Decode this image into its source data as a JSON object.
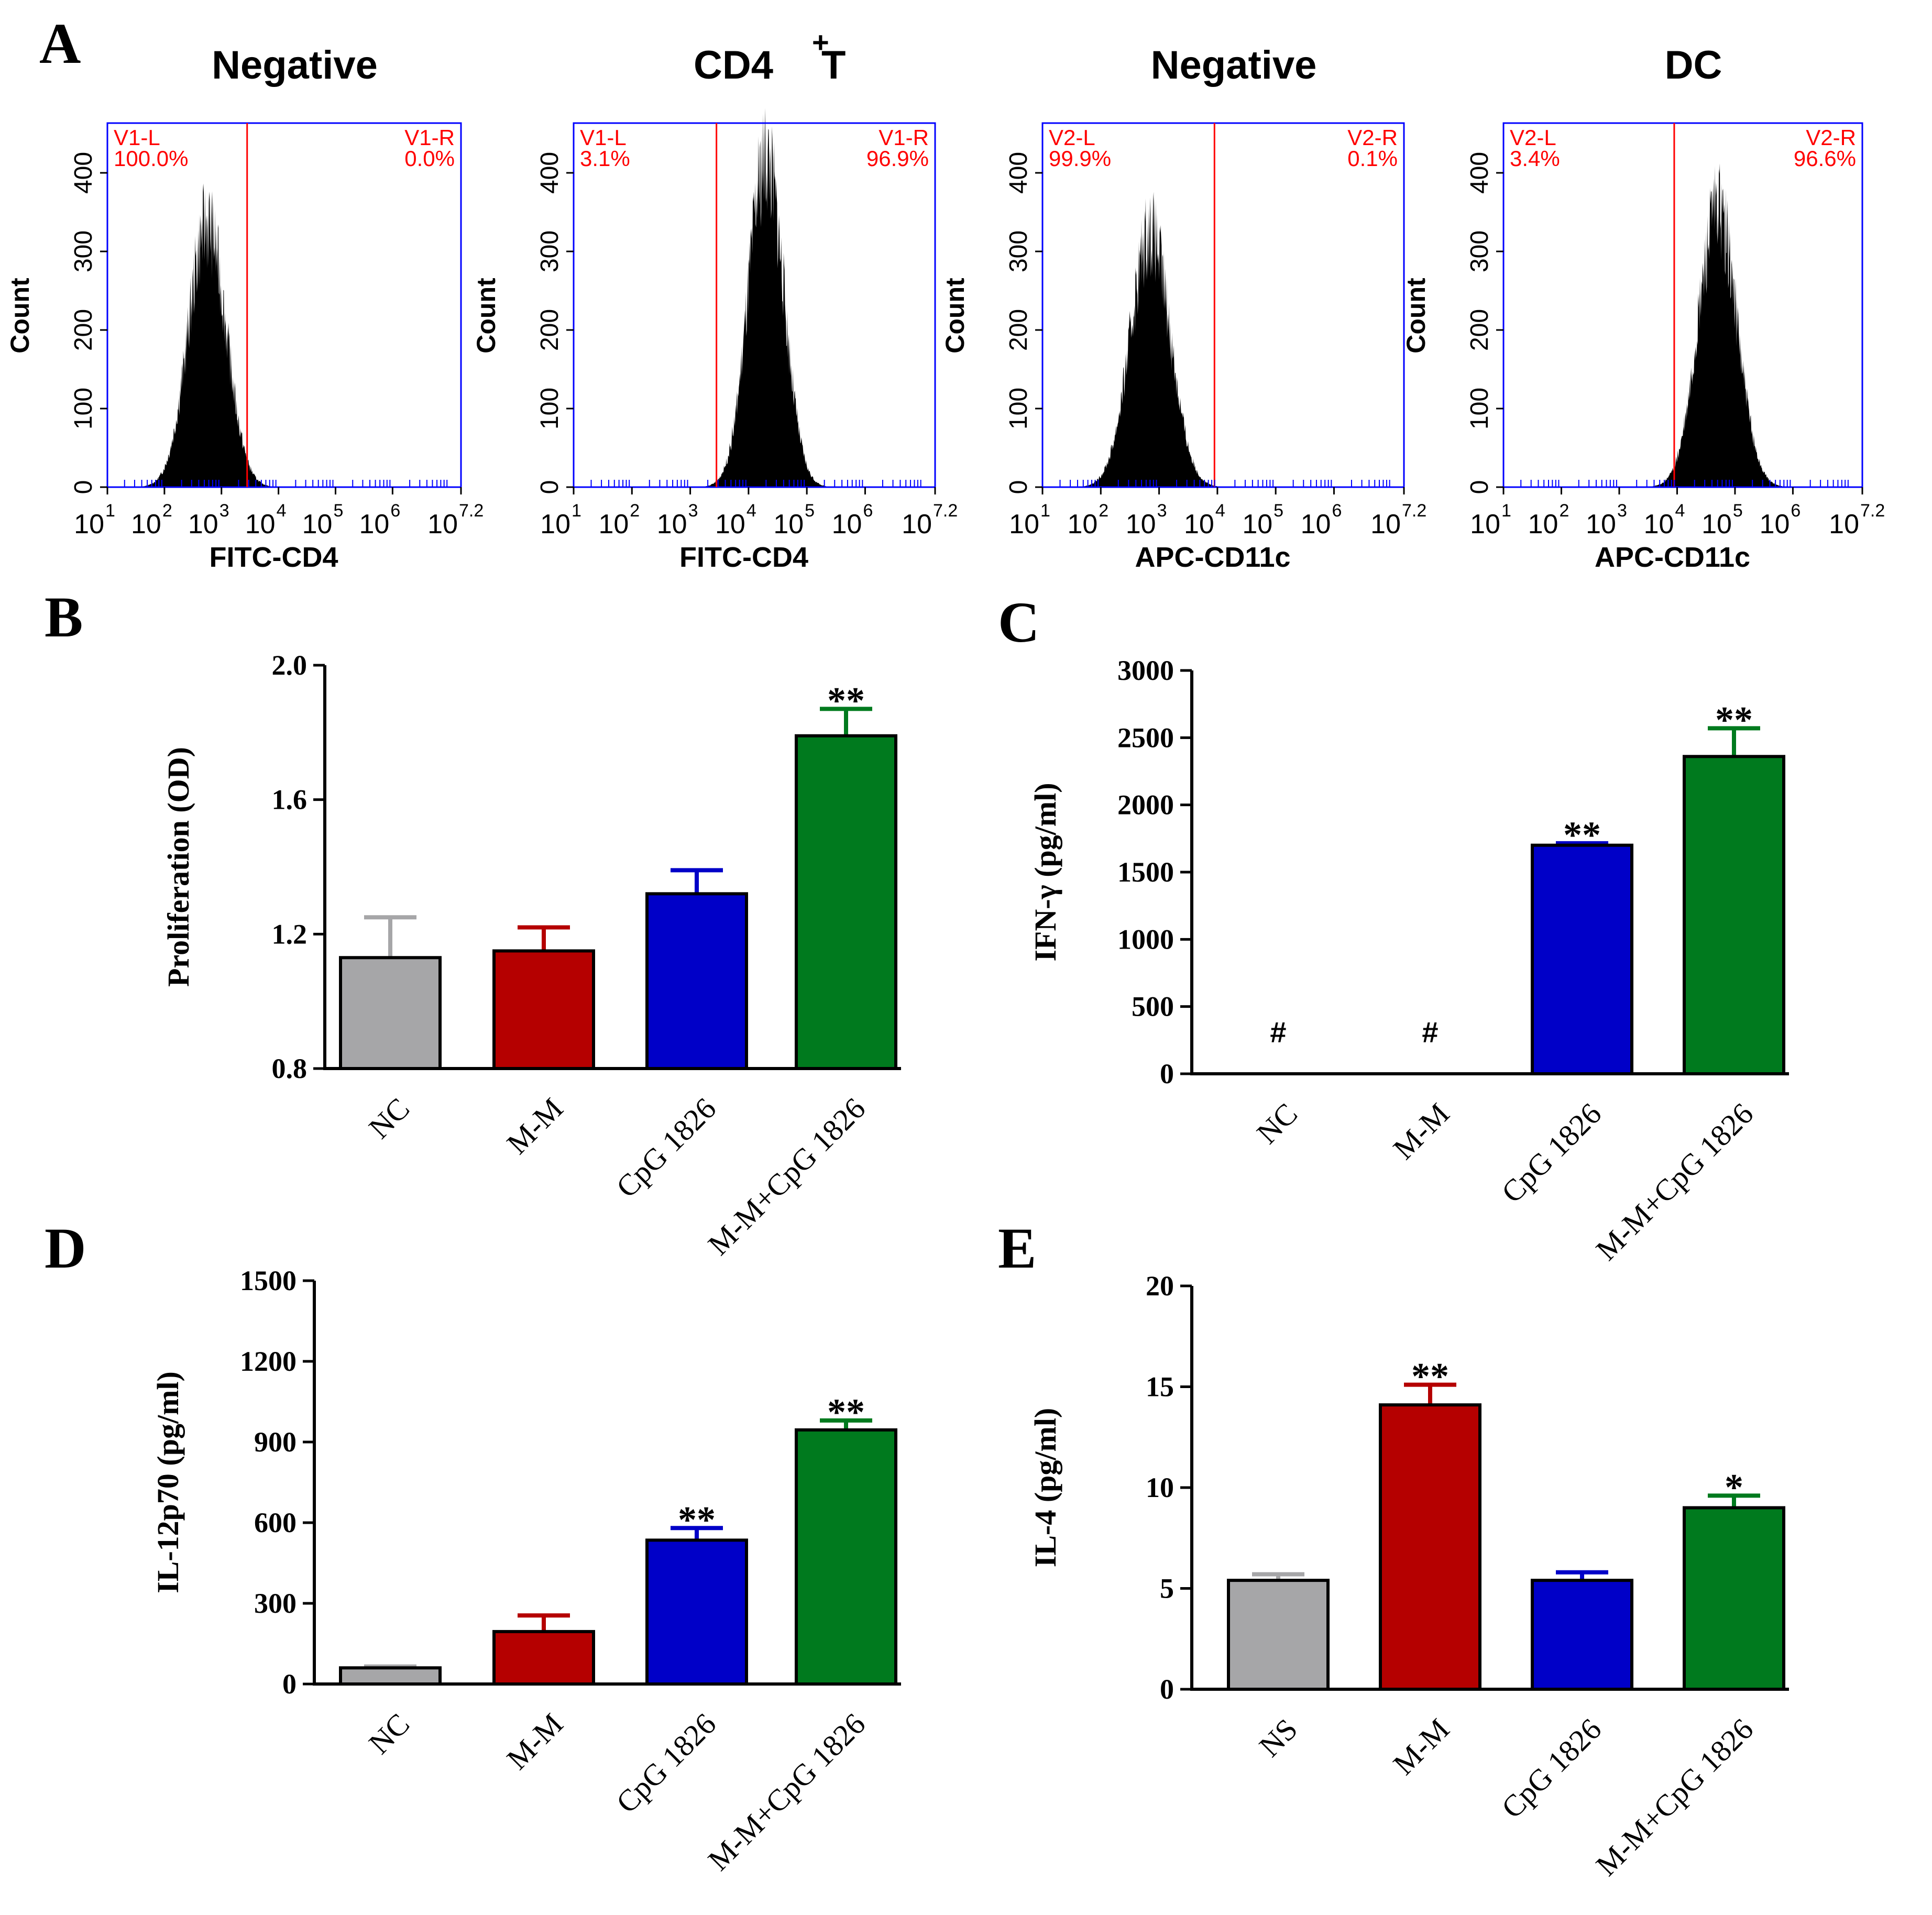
{
  "panel_labels": [
    "A",
    "B",
    "C",
    "D",
    "E"
  ],
  "colors": {
    "gray": "#A6A6A8",
    "red": "#B50000",
    "blue": "#0000C8",
    "green": "#007A1E",
    "gate_line": "#FF0000",
    "gate_text": "#FF0000",
    "frame": "#0000FF",
    "histogram": "#000000"
  },
  "chart_data": [
    {
      "panel": "A",
      "type": "histogram",
      "title": "Negative",
      "xlabel": "FITC-CD4",
      "ylabel": "Count",
      "xscale": "log10",
      "xlim": [
        1,
        7.2
      ],
      "ylim": [
        0,
        450
      ],
      "yticks": [
        "0",
        "100",
        "200",
        "300",
        "400"
      ],
      "xticks": [
        "10",
        "10",
        "10",
        "10",
        "10",
        "10",
        "10"
      ],
      "xtick_exps": [
        "1",
        "2",
        "3",
        "4",
        "5",
        "6",
        "7.2"
      ],
      "gate_at_log": 3.45,
      "gates": [
        {
          "name": "V1-L",
          "percent": "100.0%"
        },
        {
          "name": "V1-R",
          "percent": "0.0%"
        }
      ],
      "peak_log": 2.75,
      "peak_count": 335,
      "sigma_log": 0.33
    },
    {
      "panel": "A",
      "type": "histogram",
      "title": "CD4",
      "title_sup": "+",
      "title_suffix": " T",
      "xlabel": "FITC-CD4",
      "ylabel": "Count",
      "xscale": "log10",
      "xlim": [
        1,
        7.2
      ],
      "ylim": [
        0,
        450
      ],
      "yticks": [
        "0",
        "100",
        "200",
        "300",
        "400"
      ],
      "xticks": [
        "10",
        "10",
        "10",
        "10",
        "10",
        "10",
        "10"
      ],
      "xtick_exps": [
        "1",
        "2",
        "3",
        "4",
        "5",
        "6",
        "7.2"
      ],
      "gate_at_log": 3.45,
      "gates": [
        {
          "name": "V1-L",
          "percent": "3.1%"
        },
        {
          "name": "V1-R",
          "percent": "96.9%"
        }
      ],
      "peak_log": 4.3,
      "peak_count": 420,
      "sigma_log": 0.3
    },
    {
      "panel": "A",
      "type": "histogram",
      "title": "Negative",
      "xlabel": "APC-CD11c",
      "ylabel": "Count",
      "xscale": "log10",
      "xlim": [
        1,
        7.2
      ],
      "ylim": [
        0,
        450
      ],
      "yticks": [
        "0",
        "100",
        "200",
        "300",
        "400"
      ],
      "xticks": [
        "10",
        "10",
        "10",
        "10",
        "10",
        "10",
        "10"
      ],
      "xtick_exps": [
        "1",
        "2",
        "3",
        "4",
        "5",
        "6",
        "7.2"
      ],
      "gate_at_log": 3.95,
      "gates": [
        {
          "name": "V2-L",
          "percent": "99.9%"
        },
        {
          "name": "V2-R",
          "percent": "0.1%"
        }
      ],
      "peak_log": 2.85,
      "peak_count": 325,
      "sigma_log": 0.34
    },
    {
      "panel": "A",
      "type": "histogram",
      "title": "DC",
      "xlabel": "APC-CD11c",
      "ylabel": "Count",
      "xscale": "log10",
      "xlim": [
        1,
        7.2
      ],
      "ylim": [
        0,
        450
      ],
      "yticks": [
        "0",
        "100",
        "200",
        "300",
        "400"
      ],
      "xticks": [
        "10",
        "10",
        "10",
        "10",
        "10",
        "10",
        "10"
      ],
      "xtick_exps": [
        "1",
        "2",
        "3",
        "4",
        "5",
        "6",
        "7.2"
      ],
      "gate_at_log": 3.95,
      "gates": [
        {
          "name": "V2-L",
          "percent": "3.4%"
        },
        {
          "name": "V2-R",
          "percent": "96.6%"
        }
      ],
      "peak_log": 4.7,
      "peak_count": 355,
      "sigma_log": 0.33
    },
    {
      "panel": "B",
      "type": "bar",
      "title": "",
      "xlabel": "",
      "ylabel": "Proliferation (OD)",
      "ylim": [
        0.8,
        2.0
      ],
      "yticks": [
        0.8,
        1.2,
        1.6,
        2.0
      ],
      "ytick_labels": [
        "0.8",
        "1.2",
        "1.6",
        "2.0"
      ],
      "categories": [
        "NC",
        "M-M",
        "CpG 1826",
        "M-M+CpG 1826"
      ],
      "values": [
        1.13,
        1.15,
        1.32,
        1.79
      ],
      "errors": [
        0.12,
        0.07,
        0.07,
        0.08
      ],
      "annotations": [
        "",
        "",
        "",
        "**"
      ],
      "bar_colors": [
        "#A6A6A8",
        "#B50000",
        "#0000C8",
        "#007A1E"
      ]
    },
    {
      "panel": "C",
      "type": "bar",
      "title": "",
      "xlabel": "",
      "ylabel": "IFN-γ (pg/ml)",
      "ylim": [
        0,
        3000
      ],
      "yticks": [
        0,
        500,
        1000,
        1500,
        2000,
        2500,
        3000
      ],
      "ytick_labels": [
        "0",
        "500",
        "1000",
        "1500",
        "2000",
        "2500",
        "3000"
      ],
      "categories": [
        "NC",
        "M-M",
        "CpG 1826",
        "M-M+CpG 1826"
      ],
      "values": [
        0,
        0,
        1700,
        2360
      ],
      "errors": [
        0,
        0,
        15,
        210
      ],
      "annotations": [
        "#",
        "#",
        "**",
        "**"
      ],
      "bar_colors": [
        "#A6A6A8",
        "#B50000",
        "#0000C8",
        "#007A1E"
      ]
    },
    {
      "panel": "D",
      "type": "bar",
      "title": "",
      "xlabel": "",
      "ylabel": "IL-12p70 (pg/ml)",
      "ylim": [
        0,
        1500
      ],
      "yticks": [
        0,
        300,
        600,
        900,
        1200,
        1500
      ],
      "ytick_labels": [
        "0",
        "300",
        "600",
        "900",
        "1200",
        "1500"
      ],
      "categories": [
        "NC",
        "M-M",
        "CpG 1826",
        "M-M+CpG 1826"
      ],
      "values": [
        60,
        195,
        535,
        945
      ],
      "errors": [
        5,
        60,
        45,
        35
      ],
      "annotations": [
        "",
        "",
        "**",
        "**"
      ],
      "bar_colors": [
        "#A6A6A8",
        "#B50000",
        "#0000C8",
        "#007A1E"
      ]
    },
    {
      "panel": "E",
      "type": "bar",
      "title": "",
      "xlabel": "",
      "ylabel": "IL-4 (pg/ml)",
      "ylim": [
        0,
        20
      ],
      "yticks": [
        0,
        5,
        10,
        15,
        20
      ],
      "ytick_labels": [
        "0",
        "5",
        "10",
        "15",
        "20"
      ],
      "categories": [
        "NS",
        "M-M",
        "CpG 1826",
        "M-M+CpG 1826"
      ],
      "values": [
        5.4,
        14.1,
        5.4,
        9.0
      ],
      "errors": [
        0.3,
        1.0,
        0.4,
        0.6
      ],
      "annotations": [
        "",
        "**",
        "",
        "*"
      ],
      "bar_colors": [
        "#A6A6A8",
        "#B50000",
        "#0000C8",
        "#007A1E"
      ]
    }
  ]
}
